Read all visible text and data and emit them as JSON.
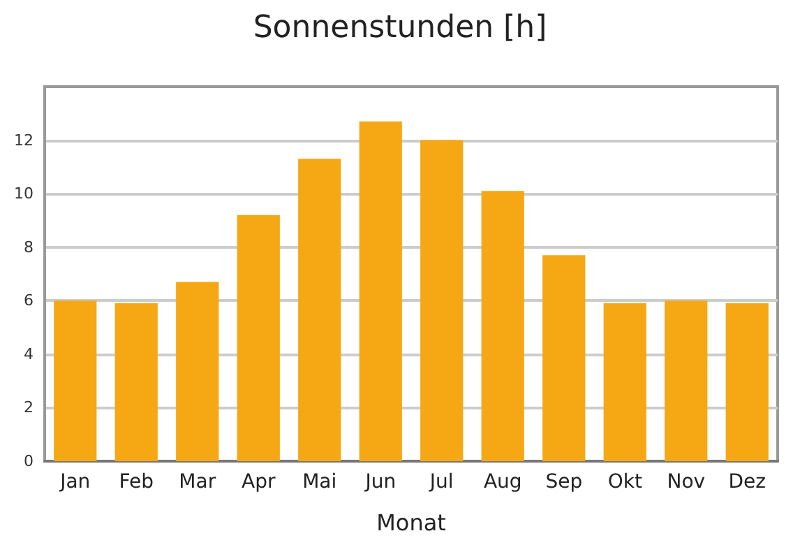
{
  "chart_data": {
    "type": "bar",
    "title": "Sonnenstunden [h]",
    "xlabel": "Monat",
    "categories": [
      "Jan",
      "Feb",
      "Mar",
      "Apr",
      "Mai",
      "Jun",
      "Jul",
      "Aug",
      "Sep",
      "Okt",
      "Nov",
      "Dez"
    ],
    "values": [
      6.0,
      5.9,
      6.7,
      9.2,
      11.3,
      12.7,
      12.0,
      10.1,
      7.7,
      5.9,
      6.0,
      5.9
    ],
    "color": "#f5a814",
    "ylim": [
      0,
      14
    ],
    "yticks": [
      0,
      2,
      4,
      6,
      8,
      10,
      12
    ],
    "grid": "y"
  }
}
